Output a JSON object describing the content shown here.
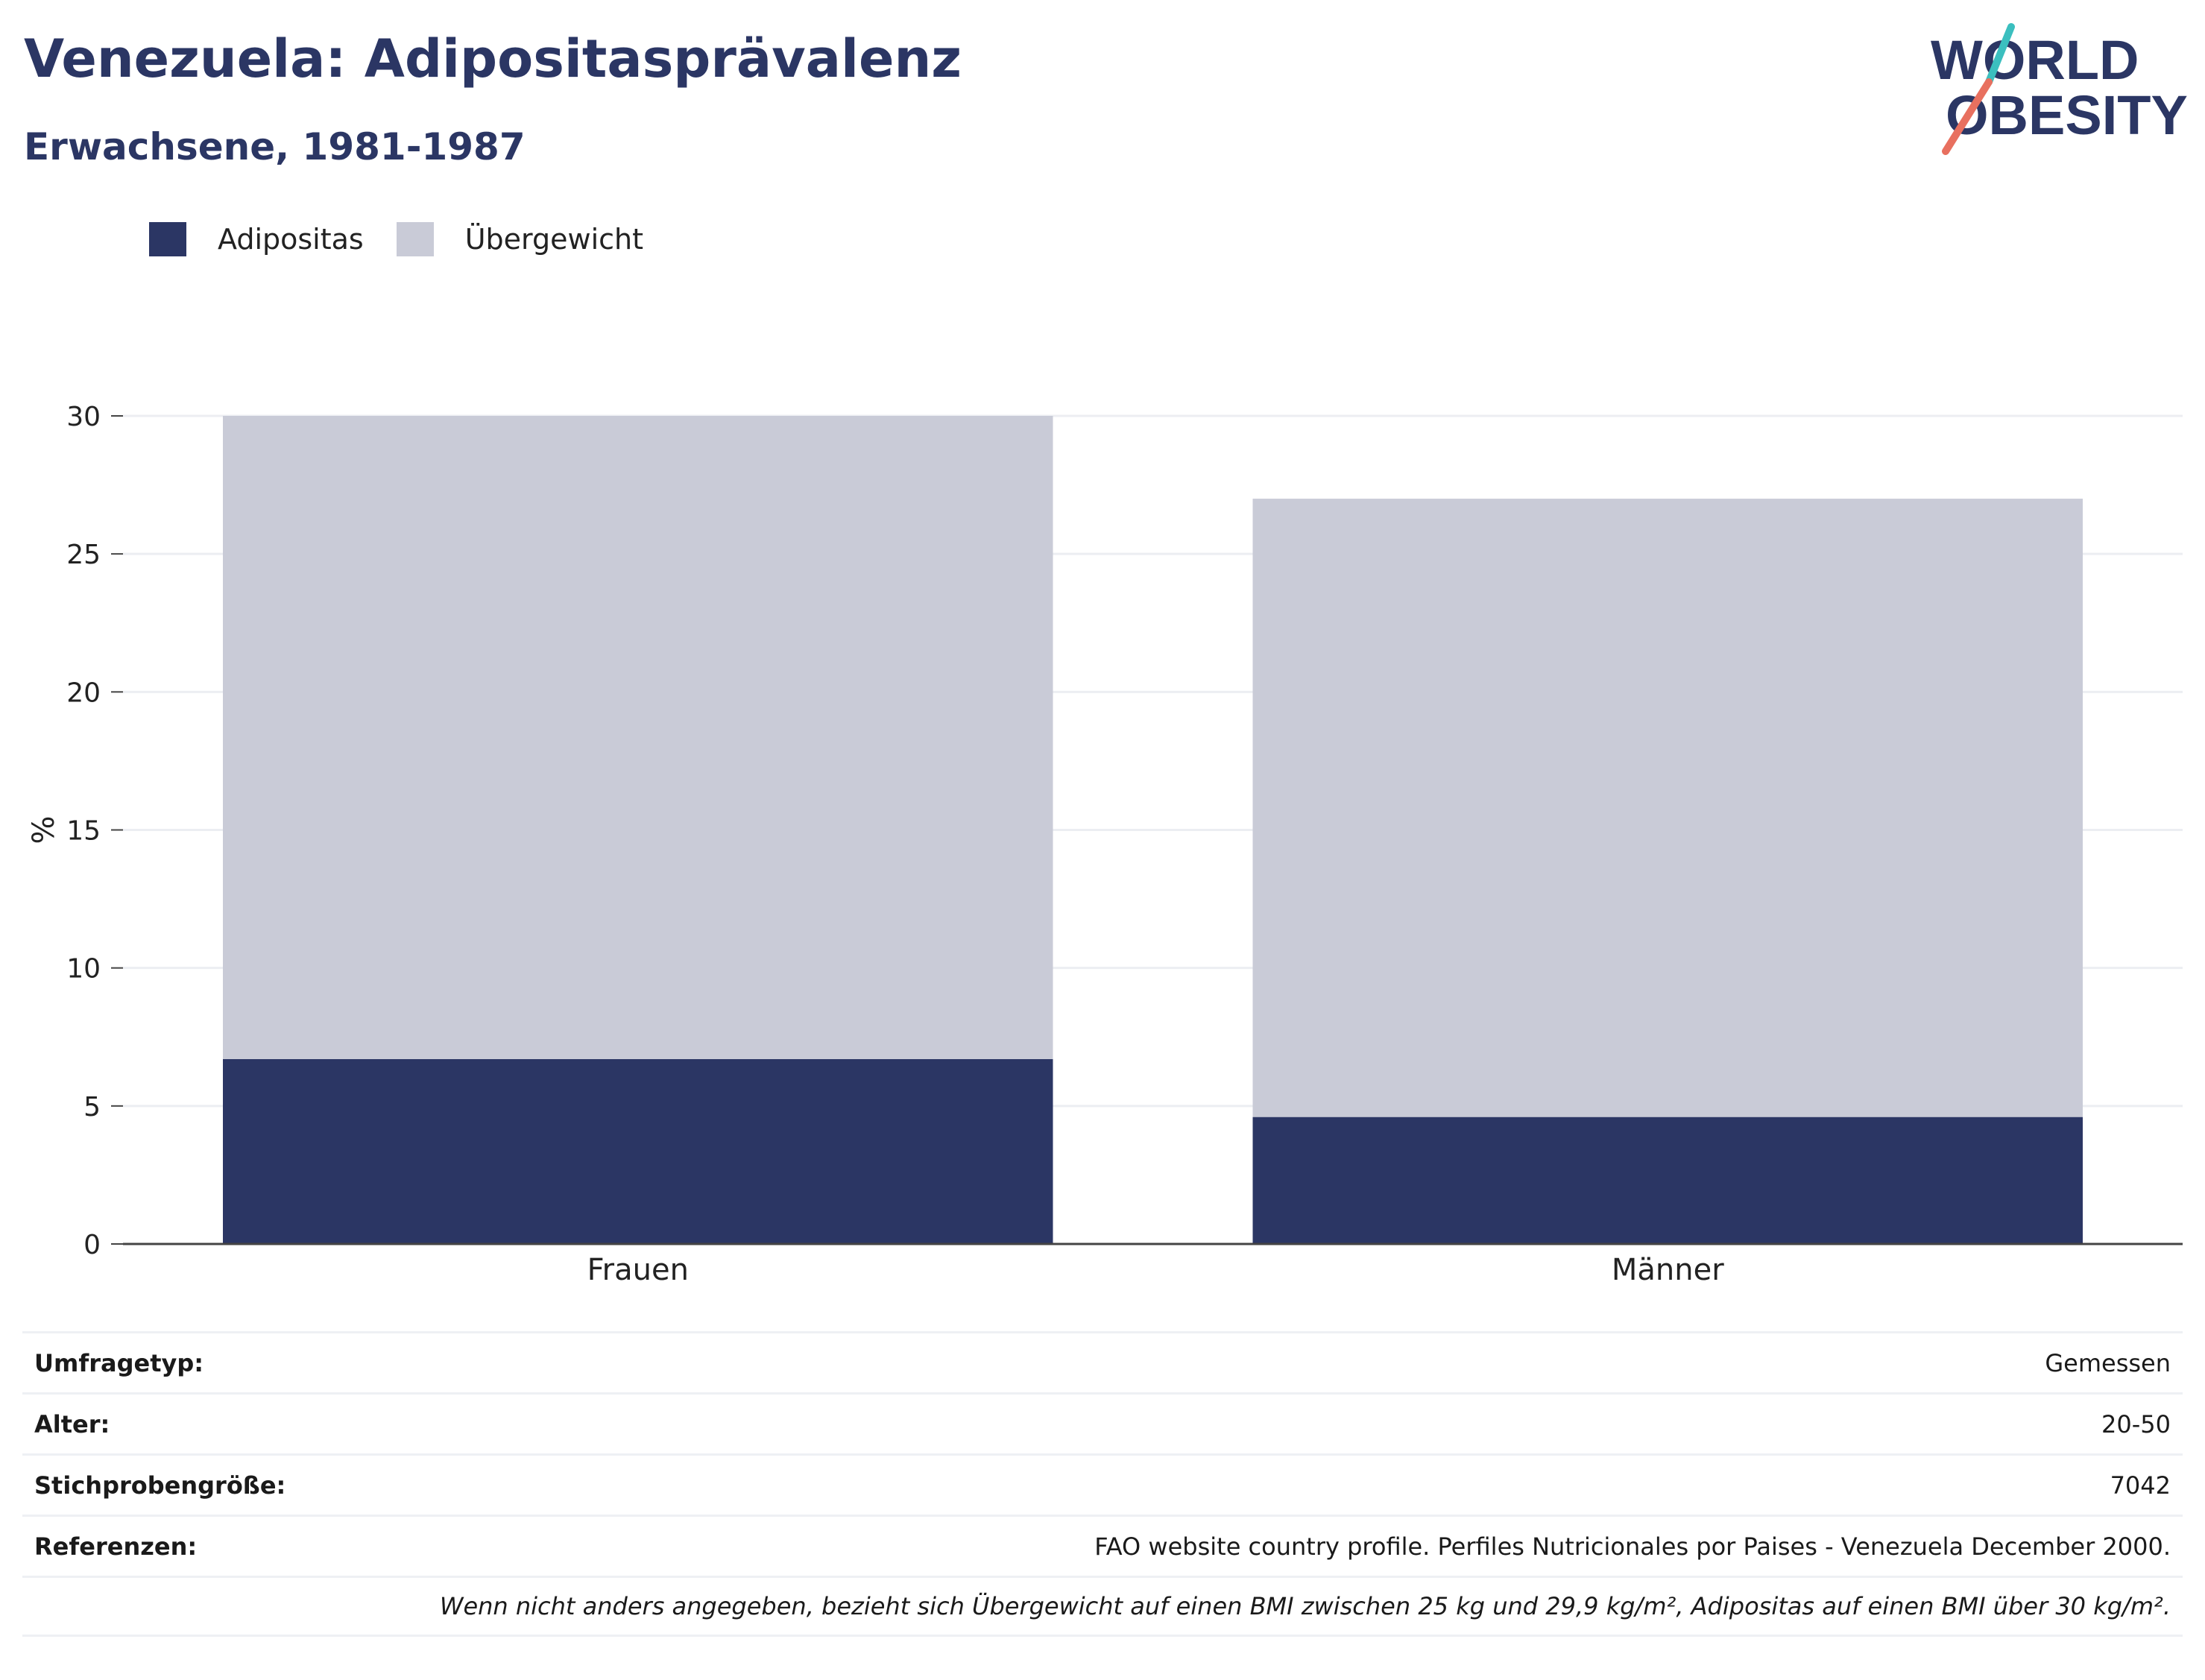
{
  "header": {
    "title": "Venezuela: Adipositasprävalenz",
    "subtitle": "Erwachsene, 1981-1987"
  },
  "logo": {
    "line1": "WORLD",
    "line2": "OBESITY",
    "colors": {
      "text": "#2b3664",
      "slash_top": "#3bbfbf",
      "slash_bottom": "#e8705f"
    }
  },
  "legend": {
    "items": [
      {
        "label": "Adipositas",
        "color": "#2b3664"
      },
      {
        "label": "Übergewicht",
        "color": "#c9cbd7"
      }
    ]
  },
  "chart_data": {
    "type": "bar",
    "stacked": true,
    "categories": [
      "Frauen",
      "Männer"
    ],
    "series": [
      {
        "name": "Adipositas",
        "color": "#2b3664",
        "values": [
          6.7,
          4.6
        ]
      },
      {
        "name": "Übergewicht",
        "color": "#c9cbd7",
        "values": [
          23.3,
          22.4
        ]
      }
    ],
    "ylabel": "%",
    "ylim": [
      0,
      30
    ],
    "yticks": [
      0,
      5,
      10,
      15,
      20,
      25,
      30
    ],
    "grid": true,
    "legend_position": "top-left"
  },
  "meta": {
    "rows": [
      {
        "label": "Umfragetyp:",
        "value": "Gemessen"
      },
      {
        "label": "Alter:",
        "value": "20-50"
      },
      {
        "label": "Stichprobengröße:",
        "value": "7042"
      },
      {
        "label": "Referenzen:",
        "value": "FAO website country profile. Perfiles Nutricionales por Paises - Venezuela December 2000."
      }
    ],
    "note": "Wenn nicht anders angegeben, bezieht sich Übergewicht auf einen BMI zwischen 25 kg und 29,9 kg/m², Adipositas auf einen BMI über 30 kg/m²."
  }
}
